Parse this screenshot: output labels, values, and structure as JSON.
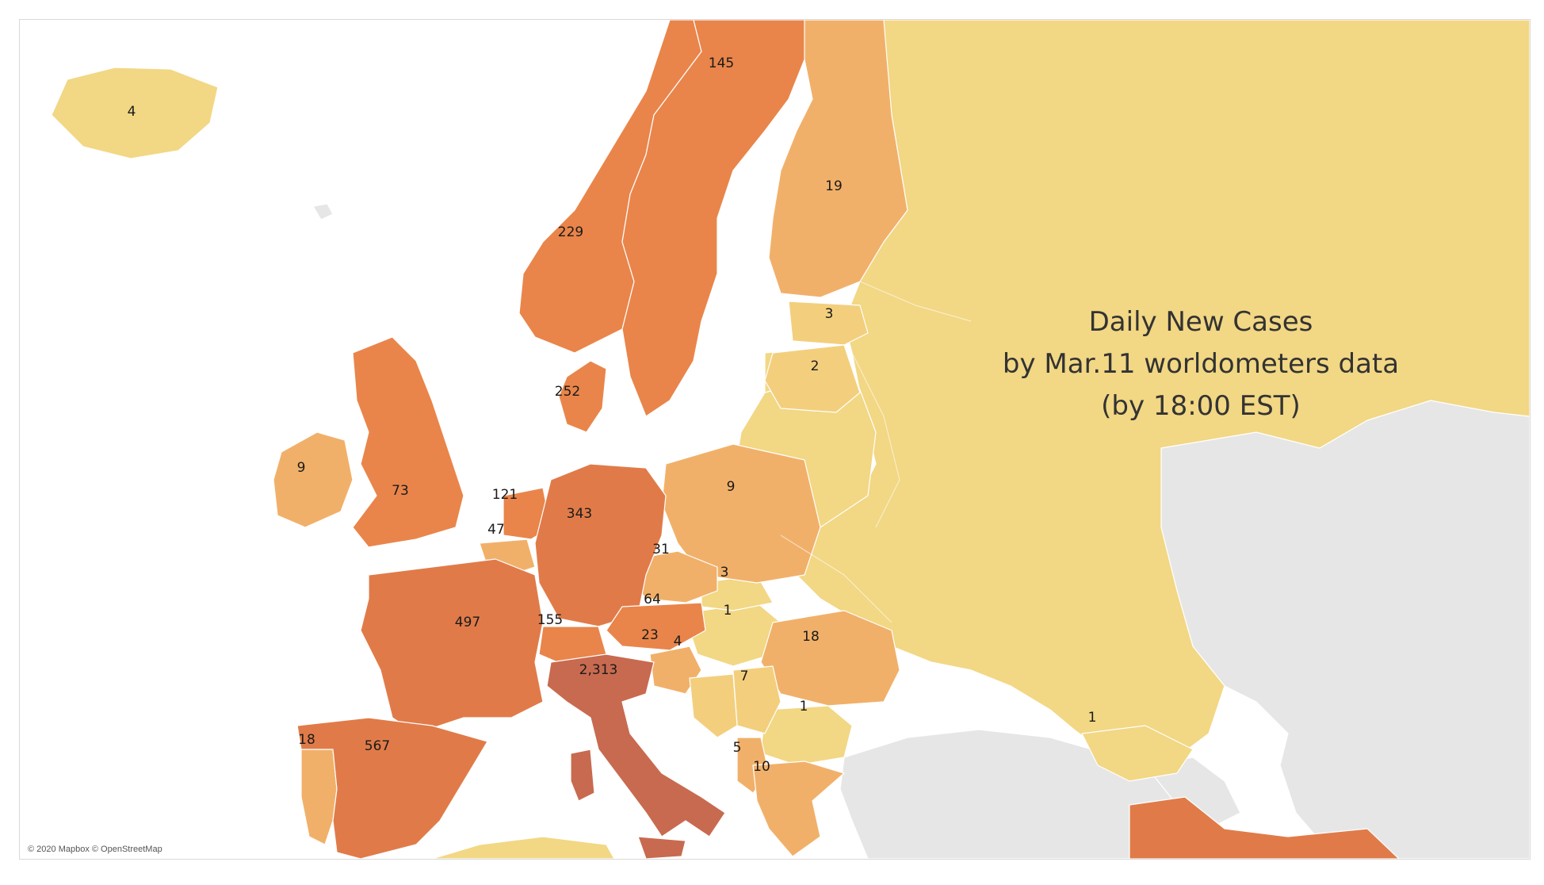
{
  "title": {
    "line1": "Daily New Cases",
    "line2": "by Mar.11 worldometers data",
    "line3": "(by 18:00 EST)"
  },
  "attribution": "© 2020 Mapbox © OpenStreetMap",
  "colors": {
    "scale_low": "#f2d784",
    "scale_1_5": "#f3cf7d",
    "scale_mid": "#f1b069",
    "scale_high": "#e9854a",
    "scale_top": "#c86a4f",
    "no_data": "#e6e6e6",
    "water": "#ffffff"
  },
  "chart_data": {
    "type": "map",
    "metric": "Daily New Cases",
    "points": [
      {
        "label": "4",
        "value": 4
      },
      {
        "label": "145",
        "value": 145
      },
      {
        "label": "19",
        "value": 19
      },
      {
        "label": "229",
        "value": 229
      },
      {
        "label": "3",
        "value": 3
      },
      {
        "label": "2",
        "value": 2
      },
      {
        "label": "252",
        "value": 252
      },
      {
        "label": "9",
        "value": 9
      },
      {
        "label": "73",
        "value": 73
      },
      {
        "label": "121",
        "value": 121
      },
      {
        "label": "343",
        "value": 343
      },
      {
        "label": "9",
        "value": 9
      },
      {
        "label": "47",
        "value": 47
      },
      {
        "label": "31",
        "value": 31
      },
      {
        "label": "3",
        "value": 3
      },
      {
        "label": "497",
        "value": 497
      },
      {
        "label": "64",
        "value": 64
      },
      {
        "label": "155",
        "value": 155
      },
      {
        "label": "1",
        "value": 1
      },
      {
        "label": "23",
        "value": 23
      },
      {
        "label": "4",
        "value": 4
      },
      {
        "label": "18",
        "value": 18
      },
      {
        "label": "2,313",
        "value": 2313
      },
      {
        "label": "7",
        "value": 7
      },
      {
        "label": "1",
        "value": 1
      },
      {
        "label": "1",
        "value": 1
      },
      {
        "label": "18",
        "value": 18
      },
      {
        "label": "567",
        "value": 567
      },
      {
        "label": "5",
        "value": 5
      },
      {
        "label": "10",
        "value": 10
      }
    ]
  }
}
